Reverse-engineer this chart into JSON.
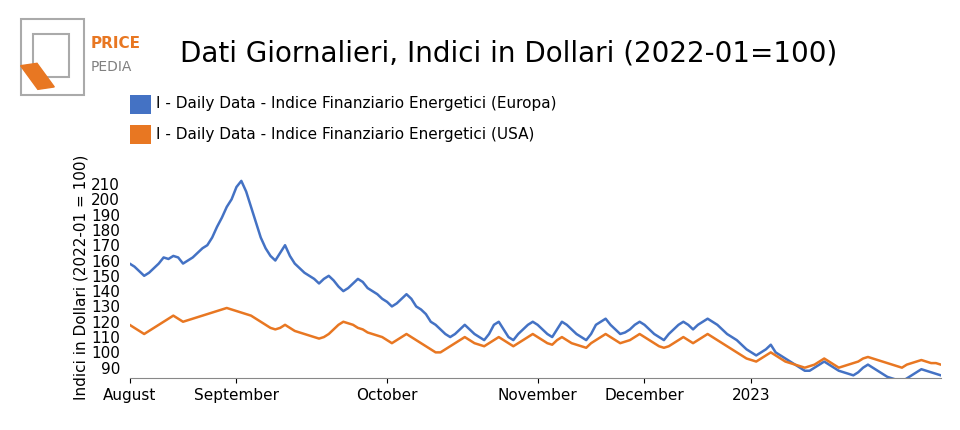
{
  "title": "Dati Giornalieri, Indici in Dollari (2022-01=100)",
  "ylabel": "Indici in Dollari (2022-01 = 100)",
  "legend_europa": "I - Daily Data - Indice Finanziario Energetici (Europa)",
  "legend_usa": "I - Daily Data - Indice Finanziario Energetici (USA)",
  "color_europa": "#4472c4",
  "color_usa": "#e87722",
  "ylim": [
    83,
    215
  ],
  "yticks": [
    90,
    100,
    110,
    120,
    130,
    140,
    150,
    160,
    170,
    180,
    190,
    200,
    210
  ],
  "background": "#ffffff",
  "europa_data": [
    158,
    156,
    153,
    150,
    152,
    155,
    158,
    162,
    161,
    163,
    162,
    158,
    160,
    162,
    165,
    168,
    170,
    175,
    182,
    188,
    195,
    200,
    208,
    212,
    205,
    195,
    185,
    175,
    168,
    163,
    160,
    165,
    170,
    163,
    158,
    155,
    152,
    150,
    148,
    145,
    148,
    150,
    147,
    143,
    140,
    142,
    145,
    148,
    146,
    142,
    140,
    138,
    135,
    133,
    130,
    132,
    135,
    138,
    135,
    130,
    128,
    125,
    120,
    118,
    115,
    112,
    110,
    112,
    115,
    118,
    115,
    112,
    110,
    108,
    112,
    118,
    120,
    115,
    110,
    108,
    112,
    115,
    118,
    120,
    118,
    115,
    112,
    110,
    115,
    120,
    118,
    115,
    112,
    110,
    108,
    112,
    118,
    120,
    122,
    118,
    115,
    112,
    113,
    115,
    118,
    120,
    118,
    115,
    112,
    110,
    108,
    112,
    115,
    118,
    120,
    118,
    115,
    118,
    120,
    122,
    120,
    118,
    115,
    112,
    110,
    108,
    105,
    102,
    100,
    98,
    100,
    102,
    105,
    100,
    98,
    96,
    94,
    92,
    90,
    88,
    88,
    90,
    92,
    94,
    92,
    90,
    88,
    87,
    86,
    85,
    87,
    90,
    92,
    90,
    88,
    86,
    84,
    83,
    82,
    81,
    83,
    85,
    87,
    89,
    88,
    87,
    86,
    85
  ],
  "usa_data": [
    118,
    116,
    114,
    112,
    114,
    116,
    118,
    120,
    122,
    124,
    122,
    120,
    121,
    122,
    123,
    124,
    125,
    126,
    127,
    128,
    129,
    128,
    127,
    126,
    125,
    124,
    122,
    120,
    118,
    116,
    115,
    116,
    118,
    116,
    114,
    113,
    112,
    111,
    110,
    109,
    110,
    112,
    115,
    118,
    120,
    119,
    118,
    116,
    115,
    113,
    112,
    111,
    110,
    108,
    106,
    108,
    110,
    112,
    110,
    108,
    106,
    104,
    102,
    100,
    100,
    102,
    104,
    106,
    108,
    110,
    108,
    106,
    105,
    104,
    106,
    108,
    110,
    108,
    106,
    104,
    106,
    108,
    110,
    112,
    110,
    108,
    106,
    105,
    108,
    110,
    108,
    106,
    105,
    104,
    103,
    106,
    108,
    110,
    112,
    110,
    108,
    106,
    107,
    108,
    110,
    112,
    110,
    108,
    106,
    104,
    103,
    104,
    106,
    108,
    110,
    108,
    106,
    108,
    110,
    112,
    110,
    108,
    106,
    104,
    102,
    100,
    98,
    96,
    95,
    94,
    96,
    98,
    100,
    98,
    96,
    94,
    93,
    92,
    91,
    90,
    91,
    92,
    94,
    96,
    94,
    92,
    90,
    91,
    92,
    93,
    94,
    96,
    97,
    96,
    95,
    94,
    93,
    92,
    91,
    90,
    92,
    93,
    94,
    95,
    94,
    93,
    93,
    92
  ],
  "x_tick_labels": [
    "August",
    "September",
    "October",
    "November",
    "December",
    "2023"
  ],
  "x_tick_positions": [
    0,
    22,
    53,
    84,
    106,
    128
  ],
  "title_fontsize": 20,
  "label_fontsize": 11,
  "tick_fontsize": 11,
  "legend_fontsize": 11,
  "logo_price_color": "#e87722",
  "logo_pedia_color": "#808080",
  "logo_box_color": "#808080"
}
